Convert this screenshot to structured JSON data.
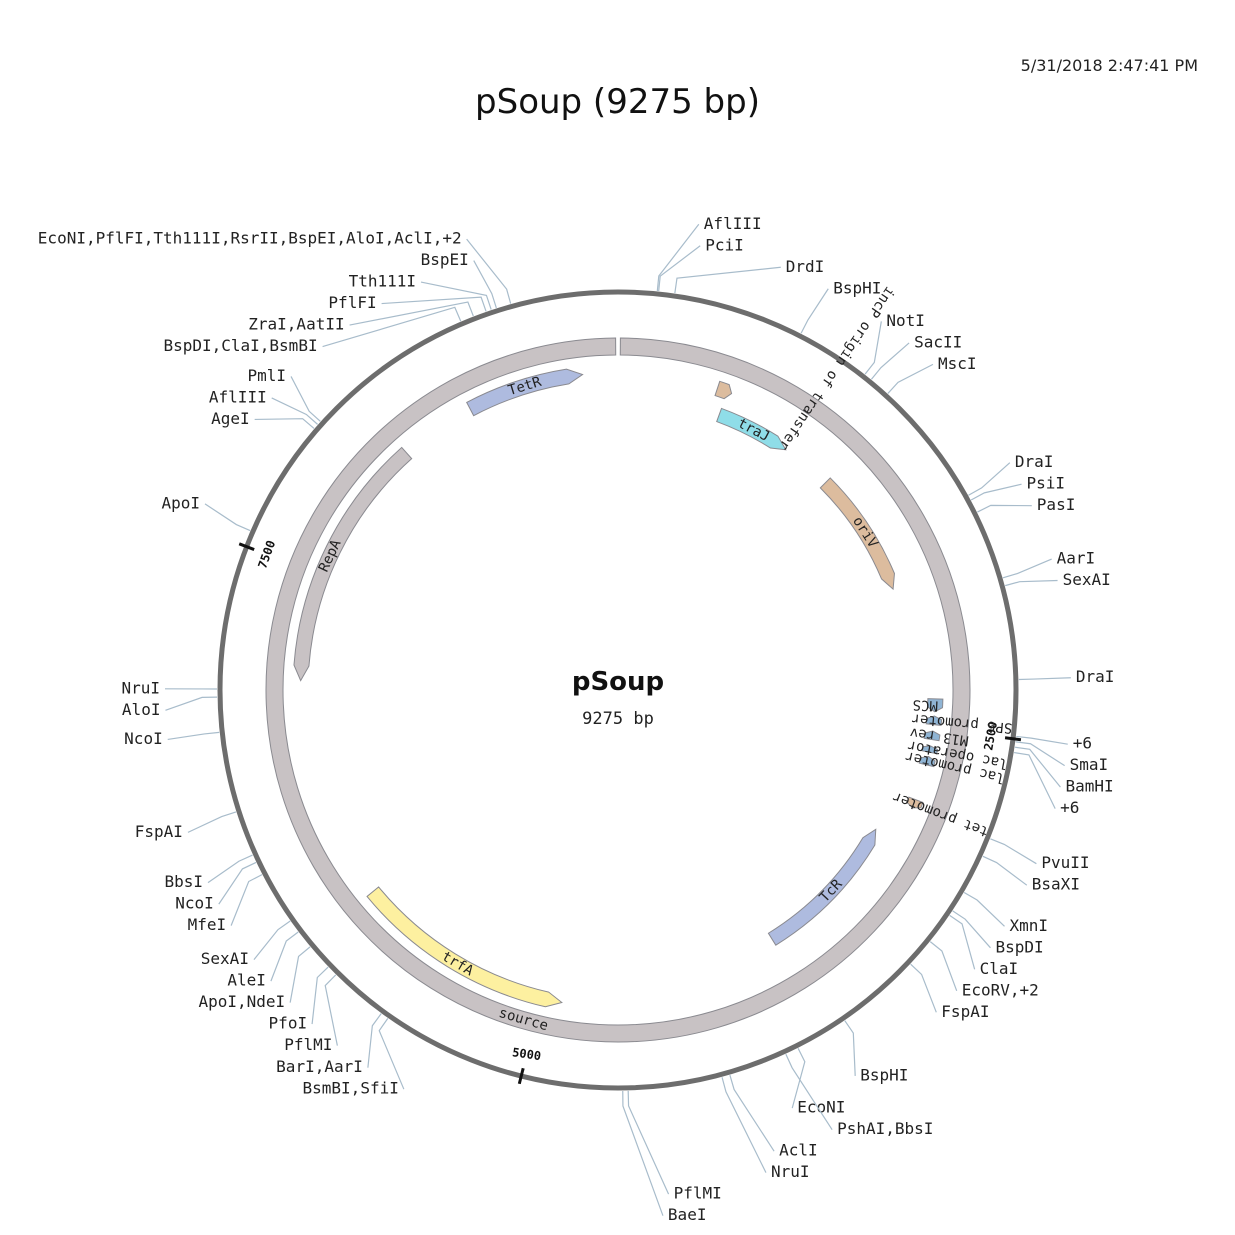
{
  "header": {
    "timestamp": "5/31/2018 2:47:41 PM",
    "title": "pSoup (9275 bp)"
  },
  "map": {
    "name": "pSoup",
    "length_label": "9275 bp",
    "length_bp": 9275,
    "ticks": [
      {
        "label": "2500",
        "pos": 2500
      },
      {
        "label": "5000",
        "pos": 5000
      },
      {
        "label": "7500",
        "pos": 7500
      }
    ],
    "colors": {
      "backbone": "#6d6d6d",
      "feature_ring": "#c8c2c4",
      "tetr": "#aebbdf",
      "trfa": "#fdf0a0",
      "trfa_light": "#fff3b0",
      "orange": "#dcbc9e",
      "cyan": "#8fdde8",
      "blue_small": "#8fb4d4",
      "site_line": "#a8bccb"
    },
    "features": [
      {
        "label": "TetR",
        "color": "tetr",
        "ring": "inner",
        "direction": "cw",
        "start": 8560,
        "end": 9110
      },
      {
        "label": "RepA",
        "color": "feature_ring",
        "ring": "inner",
        "direction": "ccw",
        "start": 7000,
        "end": 8200
      },
      {
        "label": "trfA",
        "color": "trfa",
        "ring": "inner",
        "direction": "ccw",
        "start": 4900,
        "end": 5940
      },
      {
        "label": "source",
        "color": "feature_ring",
        "ring": "outer",
        "direction": "cw",
        "start": 0,
        "end": 9275
      },
      {
        "label": "traJ",
        "color": "cyan",
        "ring": "inner2",
        "direction": "cw",
        "start": 520,
        "end": 900
      },
      {
        "label": "oriV",
        "color": "orange",
        "ring": "inner2",
        "direction": "cw",
        "start": 1160,
        "end": 1800
      },
      {
        "label": "TcR",
        "color": "tetr",
        "ring": "inner2",
        "direction": "ccw",
        "start": 3050,
        "end": 3820
      },
      {
        "label": "incP origin of transfer",
        "color": "orange",
        "ring": "inner",
        "direction": "cw",
        "start": 470,
        "end": 540
      },
      {
        "label": "MCS",
        "color": "blue_small",
        "ring": "inner",
        "direction": "cw",
        "start": 2360,
        "end": 2420
      },
      {
        "label": "SP6 promoter",
        "color": "blue_small",
        "ring": "inner",
        "direction": "ccw",
        "start": 2440,
        "end": 2480
      },
      {
        "label": "M13 rev",
        "color": "blue_small",
        "ring": "inner",
        "direction": "ccw",
        "start": 2510,
        "end": 2550
      },
      {
        "label": "lac operator",
        "color": "blue_small",
        "ring": "inner",
        "direction": "ccw",
        "start": 2580,
        "end": 2610
      },
      {
        "label": "lac promoter",
        "color": "blue_small",
        "ring": "inner",
        "direction": "ccw",
        "start": 2630,
        "end": 2670
      },
      {
        "label": "tet promoter",
        "color": "orange",
        "ring": "inner",
        "direction": "cw",
        "start": 2840,
        "end": 2880
      }
    ],
    "sites": [
      {
        "label": "EcoNI,PflFI,Tth111I,RsrII,BspEI,AloI,AclI,+2",
        "pos": 8875
      },
      {
        "label": "BspEI",
        "pos": 8820
      },
      {
        "label": "Tth111I",
        "pos": 8800
      },
      {
        "label": "PflFI",
        "pos": 8780
      },
      {
        "label": "ZraI,AatII",
        "pos": 8730
      },
      {
        "label": "BspDI,ClaI,BsmBI",
        "pos": 8680
      },
      {
        "label": "PmlI",
        "pos": 8040
      },
      {
        "label": "AflIII",
        "pos": 8025
      },
      {
        "label": "AgeI",
        "pos": 8005
      },
      {
        "label": "ApoI",
        "pos": 7560
      },
      {
        "label": "NruI",
        "pos": 6960
      },
      {
        "label": "AloI",
        "pos": 6930
      },
      {
        "label": "NcoI",
        "pos": 6800
      },
      {
        "label": "FspAI",
        "pos": 6500
      },
      {
        "label": "BbsI",
        "pos": 6330
      },
      {
        "label": "NcoI",
        "pos": 6300
      },
      {
        "label": "MfeI",
        "pos": 6250
      },
      {
        "label": "SexAI",
        "pos": 6050
      },
      {
        "label": "AleI",
        "pos": 6000
      },
      {
        "label": "ApoI,NdeI",
        "pos": 5930
      },
      {
        "label": "PfoI",
        "pos": 5830
      },
      {
        "label": "PflMI",
        "pos": 5790
      },
      {
        "label": "BarI,AarI",
        "pos": 5570
      },
      {
        "label": "BsmBI,SfiI",
        "pos": 5540
      },
      {
        "label": "BaeI",
        "pos": 4620
      },
      {
        "label": "PflMI",
        "pos": 4600
      },
      {
        "label": "NruI",
        "pos": 4250
      },
      {
        "label": "AclI",
        "pos": 4220
      },
      {
        "label": "PshAI,BbsI",
        "pos": 4000
      },
      {
        "label": "EcoNI",
        "pos": 3950
      },
      {
        "label": "BspHI",
        "pos": 3750
      },
      {
        "label": "FspAI",
        "pos": 3430
      },
      {
        "label": "EcoRV,+2",
        "pos": 3320
      },
      {
        "label": "ClaI",
        "pos": 3200
      },
      {
        "label": "BspDI",
        "pos": 3180
      },
      {
        "label": "XmnI",
        "pos": 3100
      },
      {
        "label": "BsaXI",
        "pos": 2950
      },
      {
        "label": "PvuII",
        "pos": 2880
      },
      {
        "label": "+6",
        "pos": 2550
      },
      {
        "label": "BamHI",
        "pos": 2530
      },
      {
        "label": "SmaI",
        "pos": 2510
      },
      {
        "label": "+6",
        "pos": 2490
      },
      {
        "label": "DraI",
        "pos": 2280
      },
      {
        "label": "SexAI",
        "pos": 1930
      },
      {
        "label": "AarI",
        "pos": 1900
      },
      {
        "label": "PasI",
        "pos": 1640
      },
      {
        "label": "PsiI",
        "pos": 1590
      },
      {
        "label": "DraI",
        "pos": 1570
      },
      {
        "label": "MscI",
        "pos": 1090
      },
      {
        "label": "SacII",
        "pos": 1010
      },
      {
        "label": "NotI",
        "pos": 980
      },
      {
        "label": "BspHI",
        "pos": 700
      },
      {
        "label": "DrdI",
        "pos": 210
      },
      {
        "label": "PciI",
        "pos": 150
      },
      {
        "label": "AflIII",
        "pos": 145
      }
    ]
  }
}
